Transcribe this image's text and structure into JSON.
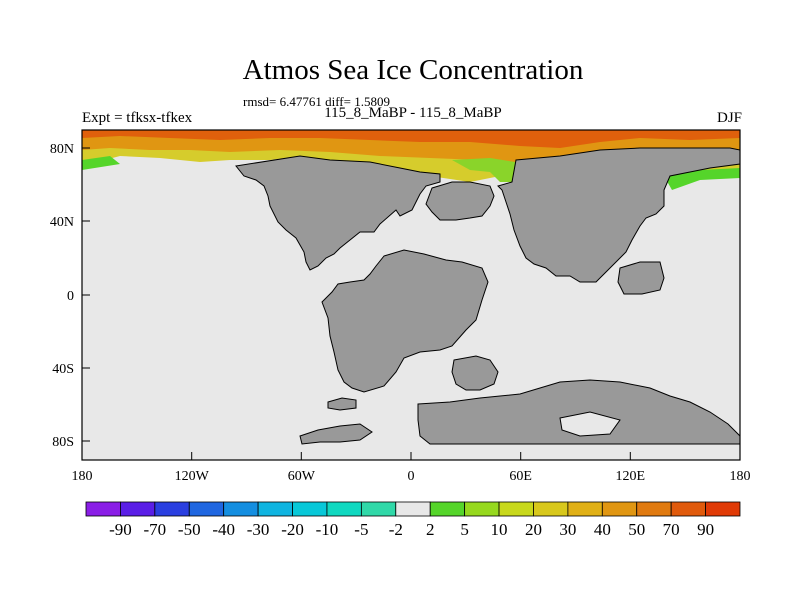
{
  "title": "Atmos Sea Ice Concentration",
  "stats": "rmsd= 6.47761 diff= 1.5809",
  "left_label": "Expt = tfksx-tfkex",
  "center_label": "115_8_MaBP - 115_8_MaBP",
  "right_label": "DJF",
  "x_ticks": [
    "180",
    "120W",
    "60W",
    "0",
    "60E",
    "120E",
    "180"
  ],
  "y_ticks": [
    "80N",
    "40N",
    "0",
    "40S",
    "80S"
  ],
  "colorbar": {
    "labels": [
      "-90",
      "-70",
      "-50",
      "-40",
      "-30",
      "-20",
      "-10",
      "-5",
      "-2",
      "2",
      "5",
      "10",
      "20",
      "30",
      "40",
      "50",
      "70",
      "90"
    ],
    "colors": [
      "#8a1ee6",
      "#5a1ee6",
      "#2a3fe0",
      "#1f66e0",
      "#148ee0",
      "#0fb4e0",
      "#08c8d8",
      "#10d8c0",
      "#30d8a8",
      "#e8e8e8",
      "#55d52a",
      "#96d81e",
      "#c8d81c",
      "#d8c81c",
      "#e0b016",
      "#e09612",
      "#e07a10",
      "#e05a0c",
      "#e03a06"
    ]
  },
  "colors": {
    "land": "#999999",
    "ocean": "#e8e8e8"
  }
}
